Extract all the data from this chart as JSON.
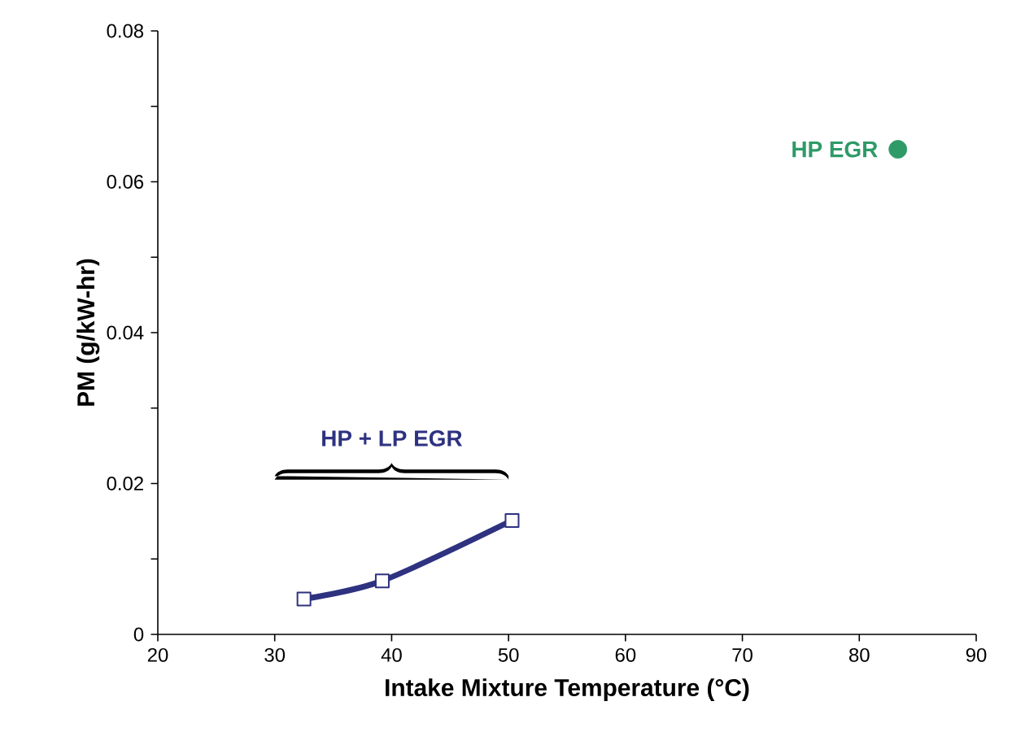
{
  "chart_data": {
    "type": "line",
    "xlabel": "Intake Mixture Temperature (°C)",
    "ylabel": "PM (g/kW-hr)",
    "xlim": [
      20,
      90
    ],
    "xticks": [
      20,
      30,
      40,
      50,
      60,
      70,
      80,
      90
    ],
    "ylim": [
      0,
      0.08
    ],
    "yticks": [
      0,
      {
        "value": 0.01,
        "label": null
      },
      0.02,
      {
        "value": 0.03,
        "label": null
      },
      0.04,
      {
        "value": 0.05,
        "label": null
      },
      0.06,
      {
        "value": 0.07,
        "label": null
      },
      0.08
    ],
    "series": [
      {
        "name": "HP + LP EGR",
        "color": "#2e3280",
        "marker": "square",
        "x": [
          32.5,
          39.2,
          50.3
        ],
        "values": [
          0.0047,
          0.0071,
          0.0151
        ]
      },
      {
        "name": "HP EGR",
        "type": "scatter",
        "color": "#2e9a68",
        "marker": "circle",
        "x": [
          83.3
        ],
        "values": [
          0.0643
        ]
      }
    ]
  }
}
